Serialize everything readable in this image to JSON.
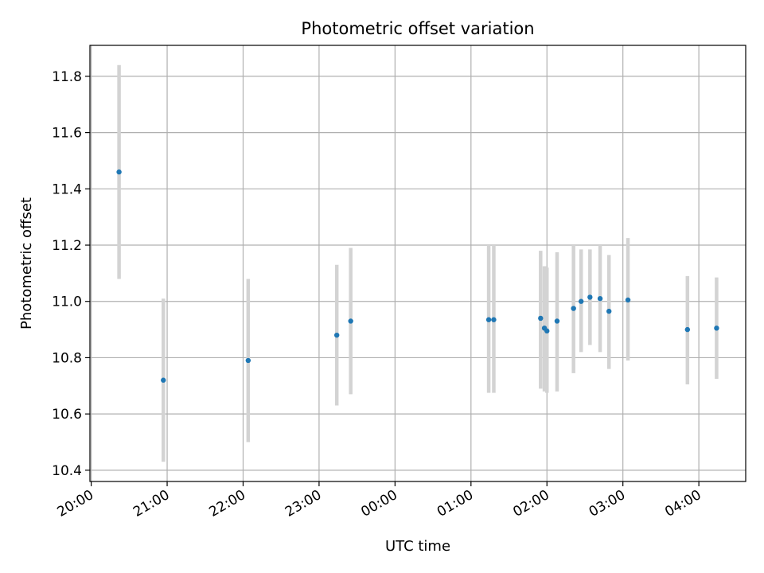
{
  "chart_data": {
    "type": "scatter",
    "title": "Photometric offset variation",
    "xlabel": "UTC time",
    "ylabel": "Photometric offset",
    "x_axis": "time",
    "x_unit": "hours",
    "xlim": [
      "19:59",
      "04:37"
    ],
    "x_ticks": [
      "20:00",
      "21:00",
      "22:00",
      "23:00",
      "00:00",
      "01:00",
      "02:00",
      "03:00",
      "04:00"
    ],
    "ylim": [
      10.36,
      11.91
    ],
    "y_ticks": [
      "10.4",
      "10.6",
      "10.8",
      "11.0",
      "11.2",
      "11.4",
      "11.6",
      "11.8"
    ],
    "grid": true,
    "colors": {
      "marker": "#1f77b4",
      "errorbar": "#d3d3d3",
      "grid": "#b0b0b0"
    },
    "series": [
      {
        "points": [
          {
            "x": "20:22",
            "y": 11.46,
            "lo": 11.08,
            "hi": 11.84
          },
          {
            "x": "20:57",
            "y": 10.72,
            "lo": 10.43,
            "hi": 11.01
          },
          {
            "x": "22:04",
            "y": 10.79,
            "lo": 10.5,
            "hi": 11.08
          },
          {
            "x": "23:14",
            "y": 10.88,
            "lo": 10.63,
            "hi": 11.13
          },
          {
            "x": "23:25",
            "y": 10.93,
            "lo": 10.67,
            "hi": 11.19
          },
          {
            "x": "01:14",
            "y": 10.935,
            "lo": 10.675,
            "hi": 11.2
          },
          {
            "x": "01:18",
            "y": 10.935,
            "lo": 10.675,
            "hi": 11.2
          },
          {
            "x": "01:55",
            "y": 10.94,
            "lo": 10.69,
            "hi": 11.18
          },
          {
            "x": "01:58",
            "y": 10.905,
            "lo": 10.68,
            "hi": 11.125
          },
          {
            "x": "02:00",
            "y": 10.895,
            "lo": 10.675,
            "hi": 11.12
          },
          {
            "x": "02:08",
            "y": 10.93,
            "lo": 10.68,
            "hi": 11.175
          },
          {
            "x": "02:21",
            "y": 10.975,
            "lo": 10.745,
            "hi": 11.2
          },
          {
            "x": "02:27",
            "y": 11.0,
            "lo": 10.82,
            "hi": 11.185
          },
          {
            "x": "02:34",
            "y": 11.015,
            "lo": 10.845,
            "hi": 11.185
          },
          {
            "x": "02:42",
            "y": 11.01,
            "lo": 10.82,
            "hi": 11.2
          },
          {
            "x": "02:49",
            "y": 10.965,
            "lo": 10.76,
            "hi": 11.165
          },
          {
            "x": "03:04",
            "y": 11.005,
            "lo": 10.79,
            "hi": 11.225
          },
          {
            "x": "03:51",
            "y": 10.9,
            "lo": 10.705,
            "hi": 11.09
          },
          {
            "x": "04:14",
            "y": 10.905,
            "lo": 10.725,
            "hi": 11.085
          }
        ]
      }
    ]
  }
}
